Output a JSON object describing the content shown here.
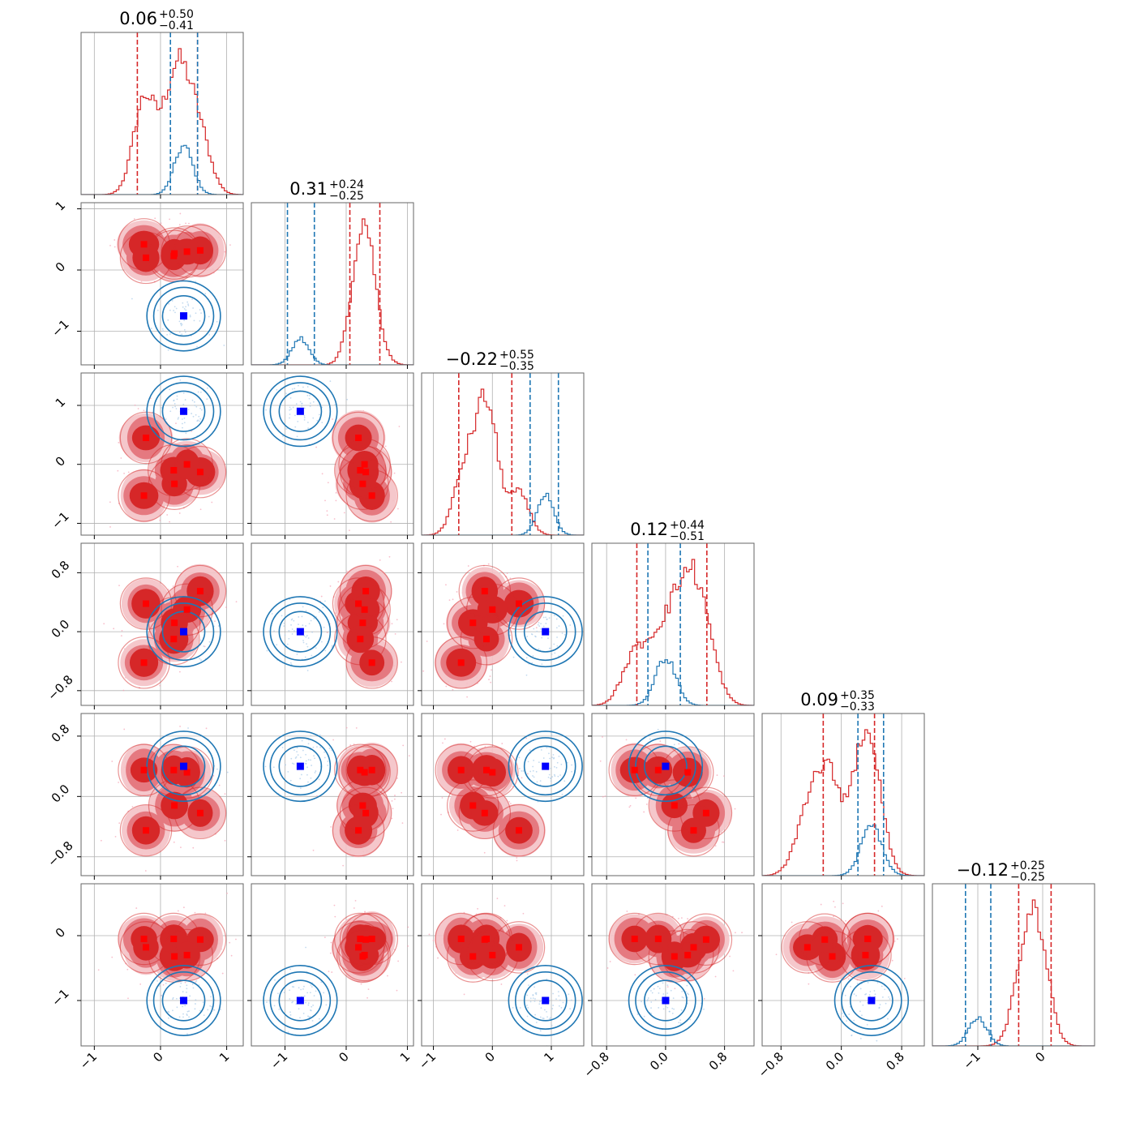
{
  "chart_data": {
    "type": "corner",
    "parameters": 6,
    "colors": {
      "blue": "#1f77b4",
      "red": "#d62728",
      "blue_marker": "#0000ff",
      "red_marker": "#ff0000"
    },
    "grid": true,
    "titles": [
      {
        "median": "0.06",
        "plus": "+0.50",
        "minus": "−0.41"
      },
      {
        "median": "0.31",
        "plus": "+0.24",
        "minus": "−0.25"
      },
      {
        "median": "−0.22",
        "plus": "+0.55",
        "minus": "−0.35"
      },
      {
        "median": "0.12",
        "plus": "+0.44",
        "minus": "−0.51"
      },
      {
        "median": "0.09",
        "plus": "+0.35",
        "minus": "−0.33"
      },
      {
        "median": "−0.12",
        "plus": "+0.25",
        "minus": "−0.25"
      }
    ],
    "axes": [
      {
        "range": [
          -1.2,
          1.25
        ],
        "ticks": [
          -1,
          0,
          1
        ],
        "ticklabels": [
          "−1",
          "0",
          "1"
        ]
      },
      {
        "range": [
          -1.55,
          1.1
        ],
        "ticks": [
          -1,
          0,
          1
        ],
        "ticklabels": [
          "−1",
          "0",
          "1"
        ]
      },
      {
        "range": [
          -1.2,
          1.55
        ],
        "ticks": [
          -1,
          0,
          1
        ],
        "ticklabels": [
          "−1",
          "0",
          "1"
        ]
      },
      {
        "range": [
          -1.0,
          1.2
        ],
        "ticks": [
          -0.8,
          0.0,
          0.8
        ],
        "ticklabels": [
          "−0.8",
          "0.0",
          "0.8"
        ]
      },
      {
        "range": [
          -1.05,
          1.1
        ],
        "ticks": [
          -0.8,
          0.0,
          0.8
        ],
        "ticklabels": [
          "−0.8",
          "0.0",
          "0.8"
        ]
      },
      {
        "range": [
          -1.7,
          0.8
        ],
        "ticks": [
          -1,
          0
        ],
        "ticklabels": [
          "−1",
          "0"
        ]
      }
    ],
    "series": [
      {
        "name": "",
        "color": "#d62728",
        "quantiles": [
          [
            -0.35,
            0.56
          ],
          [
            0.06,
            0.55
          ],
          [
            -0.57,
            0.33
          ],
          [
            -0.39,
            0.56
          ],
          [
            -0.24,
            0.44
          ],
          [
            -0.37,
            0.13
          ]
        ],
        "modes": [
          [
            -0.25,
            0.42,
            -0.53,
            -0.42,
            0.35,
            -0.05
          ],
          [
            0.21,
            0.27,
            -0.33,
            0.12,
            -0.12,
            -0.32
          ],
          [
            0.6,
            0.32,
            -0.13,
            0.55,
            -0.22,
            -0.06
          ],
          [
            -0.22,
            0.2,
            0.45,
            0.38,
            -0.45,
            -0.18
          ],
          [
            0.2,
            0.23,
            -0.1,
            -0.1,
            0.35,
            -0.05
          ],
          [
            0.4,
            0.3,
            0.0,
            0.3,
            0.32,
            -0.3
          ]
        ]
      },
      {
        "name": "",
        "color": "#1f77b4",
        "quantiles": [
          [
            0.15,
            0.56
          ],
          [
            -0.96,
            -0.52
          ],
          [
            0.64,
            1.12
          ],
          [
            -0.24,
            0.2
          ],
          [
            0.22,
            0.56
          ],
          [
            -1.19,
            -0.8
          ]
        ],
        "mode": [
          0.35,
          -0.75,
          0.9,
          0.0,
          0.4,
          -1.0
        ]
      }
    ]
  }
}
